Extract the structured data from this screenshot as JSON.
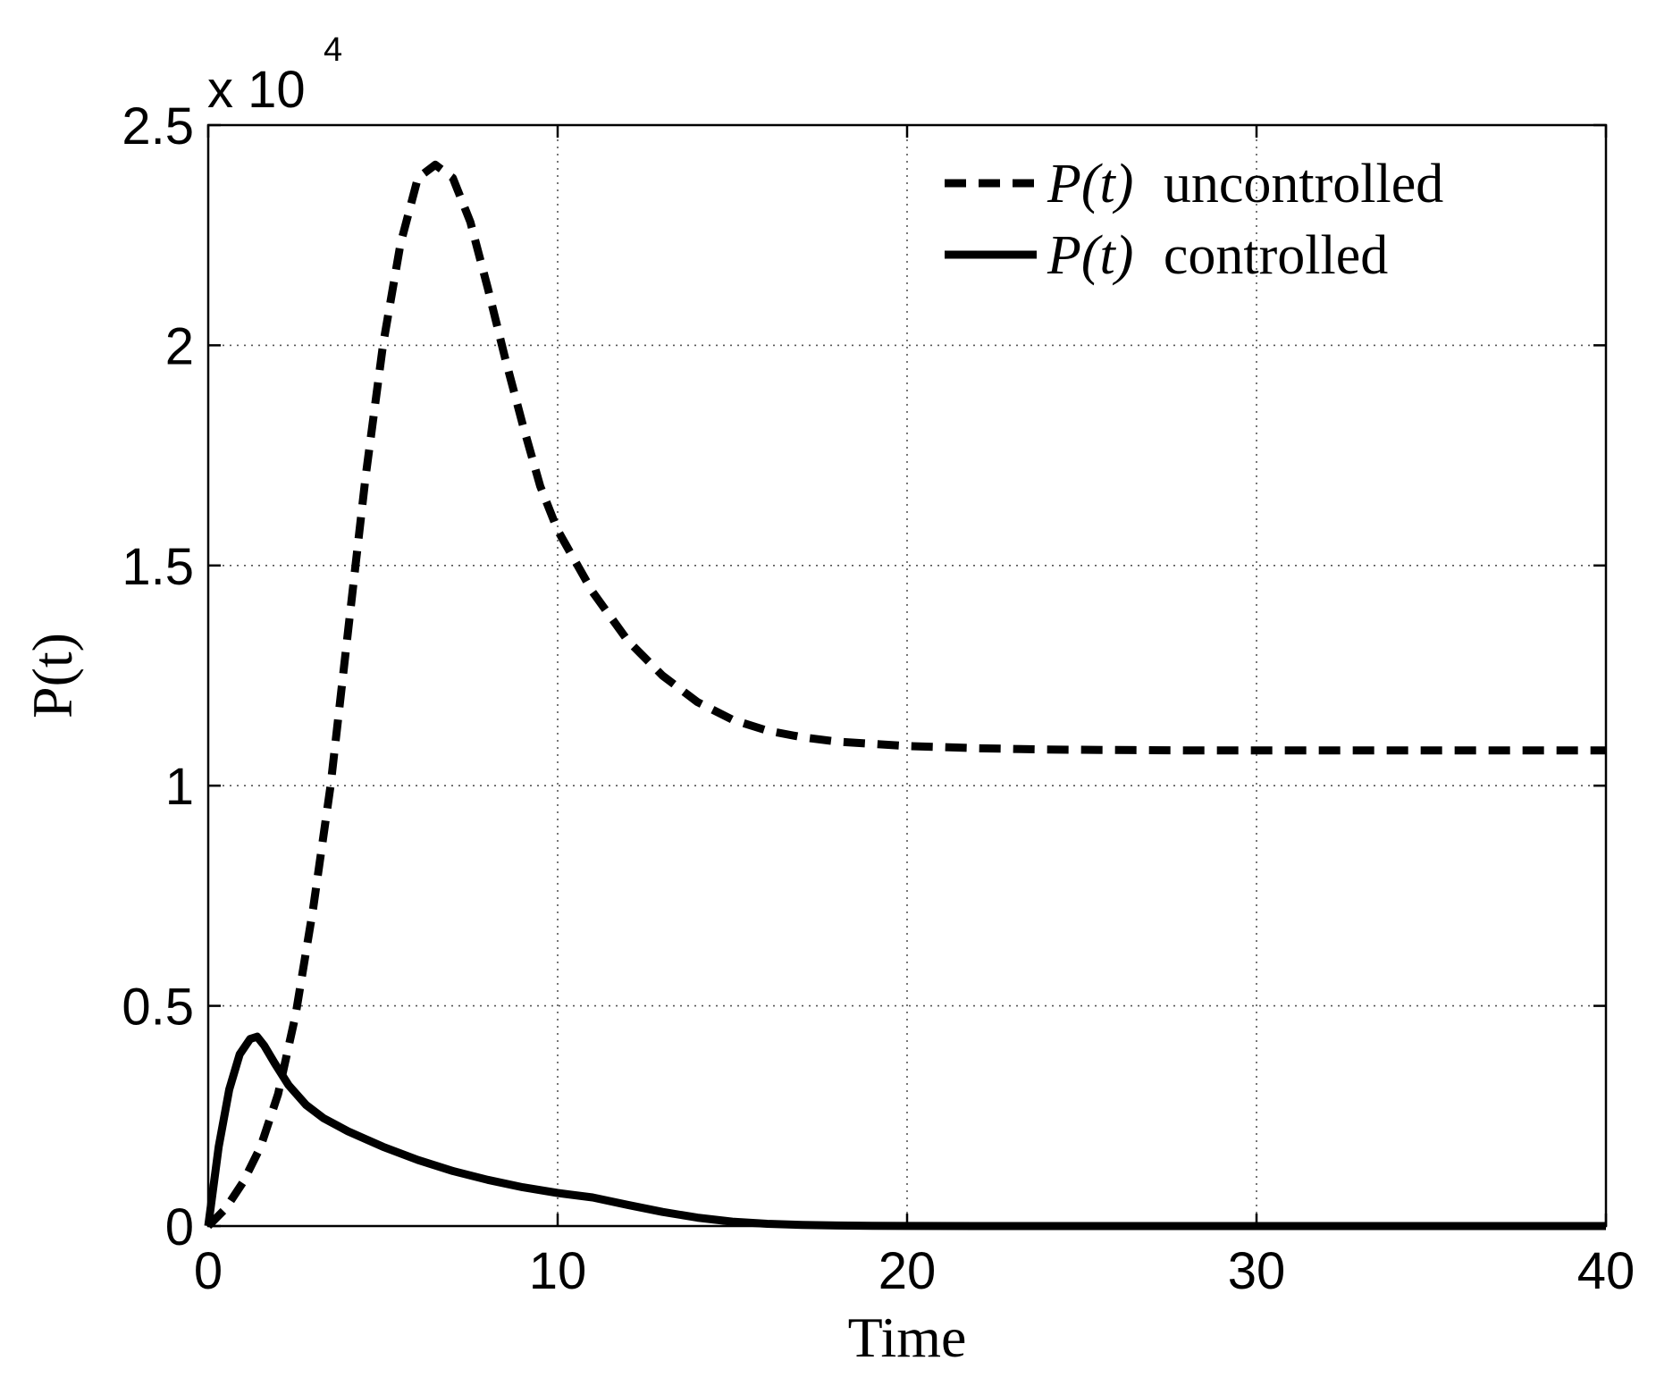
{
  "chart_data": {
    "type": "line",
    "xlabel": "Time",
    "ylabel": "P(t)",
    "xlim": [
      0,
      40
    ],
    "ylim": [
      0,
      25000
    ],
    "x_ticks": [
      0,
      10,
      20,
      30,
      40
    ],
    "x_tick_labels": [
      "0",
      "10",
      "20",
      "30",
      "40"
    ],
    "y_ticks": [
      0,
      5000,
      10000,
      15000,
      20000,
      25000
    ],
    "y_tick_labels": [
      "0",
      "0.5",
      "1",
      "1.5",
      "2",
      "2.5"
    ],
    "y_multiplier": {
      "base": "x 10",
      "exponent": "4"
    },
    "grid": true,
    "legend_position": "top-right",
    "series": [
      {
        "name_prefix": "P(t)",
        "name_suffix": "uncontrolled",
        "style": "dashed",
        "color": "#000000",
        "x": [
          0,
          0.5,
          1,
          1.5,
          2,
          2.5,
          3,
          3.5,
          4,
          4.5,
          5,
          5.5,
          6,
          6.5,
          7,
          7.5,
          8,
          8.5,
          9,
          9.5,
          10,
          11,
          12,
          13,
          14,
          15,
          16,
          17,
          18,
          19,
          20,
          22,
          24,
          26,
          28,
          30,
          32,
          34,
          36,
          38,
          40
        ],
        "y": [
          0,
          400,
          1000,
          1800,
          3000,
          4800,
          7200,
          10000,
          13500,
          17000,
          20000,
          22300,
          23800,
          24100,
          23800,
          22800,
          21300,
          19700,
          18200,
          16800,
          15800,
          14400,
          13300,
          12500,
          11900,
          11500,
          11250,
          11100,
          11000,
          10950,
          10900,
          10850,
          10820,
          10810,
          10800,
          10800,
          10800,
          10800,
          10800,
          10800,
          10800
        ]
      },
      {
        "name_prefix": "P(t)",
        "name_suffix": "controlled",
        "style": "solid",
        "color": "#000000",
        "x": [
          0,
          0.3,
          0.6,
          0.9,
          1.2,
          1.4,
          1.6,
          1.9,
          2.3,
          2.8,
          3.3,
          4,
          5,
          6,
          7,
          8,
          9,
          10,
          11,
          12,
          13,
          14,
          15,
          16,
          17,
          18,
          19,
          20,
          22,
          25,
          30,
          35,
          40
        ],
        "y": [
          0,
          1800,
          3100,
          3900,
          4250,
          4300,
          4100,
          3700,
          3200,
          2750,
          2450,
          2150,
          1800,
          1500,
          1250,
          1050,
          880,
          750,
          650,
          480,
          320,
          190,
          100,
          50,
          25,
          12,
          6,
          3,
          0,
          0,
          0,
          0,
          0
        ]
      }
    ]
  }
}
